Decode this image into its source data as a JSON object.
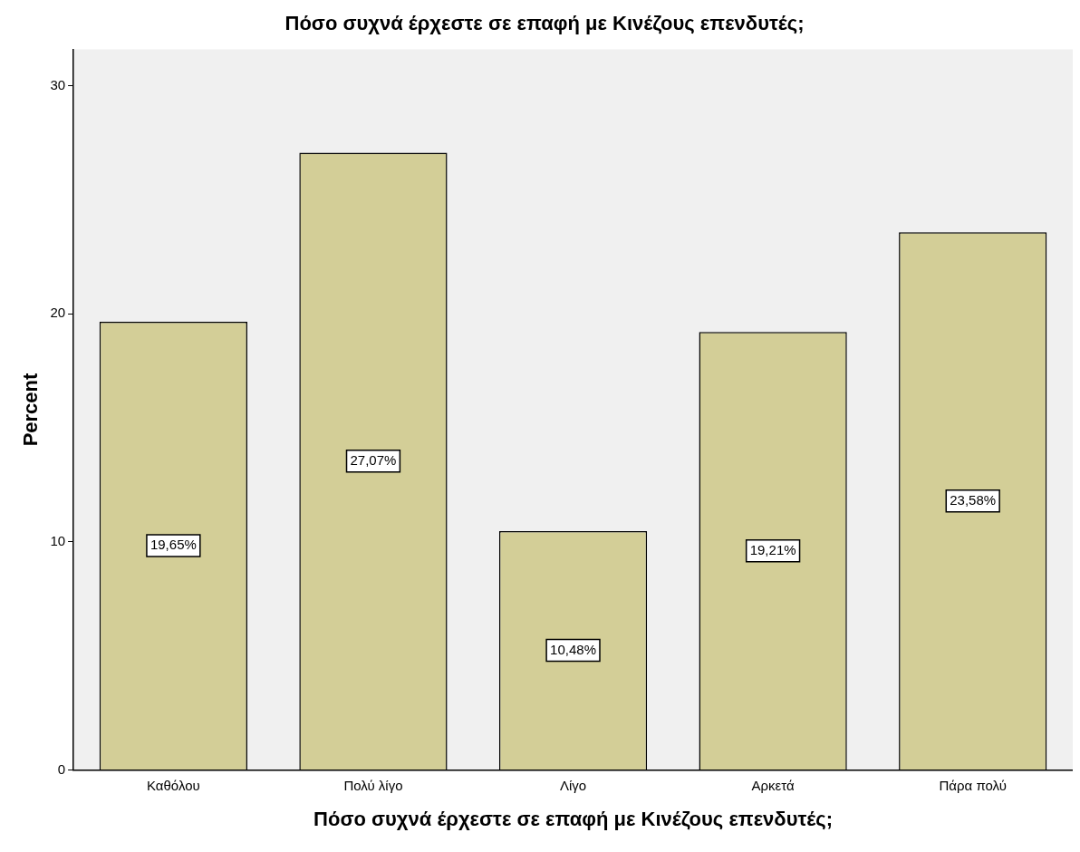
{
  "chart_data": {
    "type": "bar",
    "title": "Πόσο συχνά έρχεστε σε επαφή με Κινέζους επενδυτές;",
    "xlabel": "Πόσο συχνά έρχεστε σε επαφή με Κινέζους επενδυτές;",
    "ylabel": "Percent",
    "categories": [
      "Καθόλου",
      "Πολύ λίγο",
      "Λίγο",
      "Αρκετά",
      "Πάρα πολύ"
    ],
    "values": [
      19.65,
      27.07,
      10.48,
      19.21,
      23.58
    ],
    "value_labels": [
      "19,65%",
      "27,07%",
      "10,48%",
      "19,21%",
      "23,58%"
    ],
    "color": "#d3ce97",
    "ylim": [
      0,
      31.6
    ],
    "yticks": [
      0,
      10,
      20,
      30
    ],
    "grid": false,
    "legend": false
  }
}
